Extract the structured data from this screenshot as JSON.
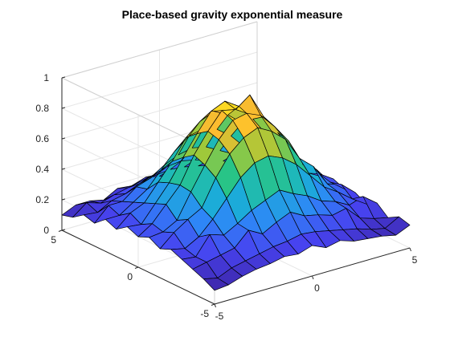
{
  "chart_data": {
    "type": "surface",
    "title": "Place-based gravity exponential measure",
    "xlabel": "",
    "ylabel": "",
    "zlabel": "",
    "xlim": [
      -5,
      5
    ],
    "ylim": [
      -5,
      5
    ],
    "zlim": [
      0,
      1
    ],
    "x_ticks": [
      "-5",
      "0",
      "5"
    ],
    "y_ticks": [
      "-5",
      "0",
      "5"
    ],
    "z_ticks": [
      "0",
      "0.2",
      "0.4",
      "0.6",
      "0.8",
      "1"
    ],
    "grid": true,
    "colormap": "parula",
    "colormap_stops": [
      "#3e26a8",
      "#4743f0",
      "#2e87f7",
      "#19b2d3",
      "#29c584",
      "#9fc93a",
      "#fdbb2f",
      "#f9fb15"
    ],
    "grid_x": [
      -5,
      -4.286,
      -3.571,
      -2.857,
      -2.143,
      -1.429,
      -0.714,
      0,
      0.714,
      1.429,
      2.143,
      2.857,
      3.571,
      4.286,
      5
    ],
    "grid_y": [
      -5,
      -4.286,
      -3.571,
      -2.857,
      -2.143,
      -1.429,
      -0.714,
      0,
      0.714,
      1.429,
      2.143,
      2.857,
      3.571,
      4.286,
      5
    ],
    "z": [
      [
        0.09,
        0.1,
        0.13,
        0.15,
        0.16,
        0.18,
        0.17,
        0.2,
        0.16,
        0.18,
        0.15,
        0.14,
        0.13,
        0.11,
        0.15
      ],
      [
        0.13,
        0.11,
        0.15,
        0.17,
        0.19,
        0.21,
        0.22,
        0.24,
        0.23,
        0.21,
        0.19,
        0.17,
        0.14,
        0.12,
        0.17
      ],
      [
        0.16,
        0.18,
        0.2,
        0.22,
        0.31,
        0.26,
        0.31,
        0.35,
        0.3,
        0.28,
        0.25,
        0.27,
        0.18,
        0.15,
        0.13
      ],
      [
        0.19,
        0.18,
        0.3,
        0.27,
        0.32,
        0.38,
        0.42,
        0.46,
        0.41,
        0.37,
        0.31,
        0.28,
        0.23,
        0.26,
        0.19
      ],
      [
        0.22,
        0.2,
        0.25,
        0.34,
        0.45,
        0.56,
        0.63,
        0.65,
        0.61,
        0.54,
        0.44,
        0.34,
        0.28,
        0.21,
        0.15
      ],
      [
        0.19,
        0.27,
        0.33,
        0.38,
        0.55,
        0.68,
        0.76,
        0.8,
        0.75,
        0.67,
        0.52,
        0.44,
        0.3,
        0.27,
        0.19
      ],
      [
        0.23,
        0.24,
        0.29,
        0.45,
        0.6,
        0.74,
        0.84,
        0.86,
        0.82,
        0.72,
        0.6,
        0.42,
        0.36,
        0.25,
        0.18
      ],
      [
        0.2,
        0.26,
        0.36,
        0.46,
        0.63,
        0.76,
        0.87,
        0.85,
        0.92,
        0.75,
        0.62,
        0.47,
        0.35,
        0.27,
        0.21
      ],
      [
        0.23,
        0.22,
        0.33,
        0.44,
        0.58,
        0.71,
        0.83,
        0.87,
        0.81,
        0.7,
        0.57,
        0.45,
        0.34,
        0.24,
        0.19
      ],
      [
        0.18,
        0.26,
        0.3,
        0.41,
        0.52,
        0.65,
        0.73,
        0.77,
        0.72,
        0.64,
        0.51,
        0.4,
        0.3,
        0.26,
        0.17
      ],
      [
        0.21,
        0.21,
        0.27,
        0.33,
        0.43,
        0.53,
        0.6,
        0.62,
        0.59,
        0.52,
        0.42,
        0.33,
        0.27,
        0.2,
        0.16
      ],
      [
        0.15,
        0.24,
        0.24,
        0.31,
        0.34,
        0.4,
        0.44,
        0.46,
        0.44,
        0.39,
        0.34,
        0.31,
        0.24,
        0.22,
        0.14
      ],
      [
        0.17,
        0.16,
        0.21,
        0.23,
        0.27,
        0.3,
        0.33,
        0.34,
        0.32,
        0.29,
        0.26,
        0.22,
        0.19,
        0.16,
        0.18
      ],
      [
        0.12,
        0.19,
        0.16,
        0.19,
        0.21,
        0.23,
        0.24,
        0.25,
        0.24,
        0.22,
        0.2,
        0.18,
        0.15,
        0.17,
        0.12
      ],
      [
        0.1,
        0.14,
        0.14,
        0.12,
        0.17,
        0.16,
        0.19,
        0.17,
        0.15,
        0.18,
        0.14,
        0.13,
        0.16,
        0.12,
        0.1
      ]
    ]
  }
}
